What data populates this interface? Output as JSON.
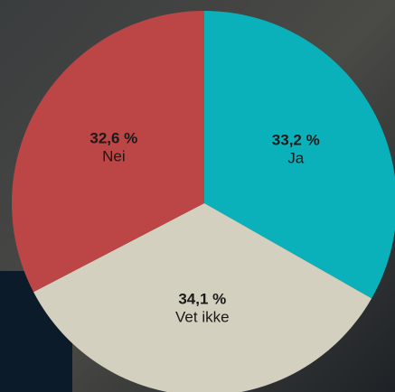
{
  "chart_data": {
    "type": "pie",
    "categories": [
      "Ja",
      "Vet ikke",
      "Nei"
    ],
    "values": [
      33.2,
      34.1,
      32.6
    ],
    "value_labels": [
      "33,2 %",
      "34,1 %",
      "32,6 %"
    ],
    "colors": [
      "#0bb1ba",
      "#d4d0bf",
      "#bc4545"
    ]
  }
}
